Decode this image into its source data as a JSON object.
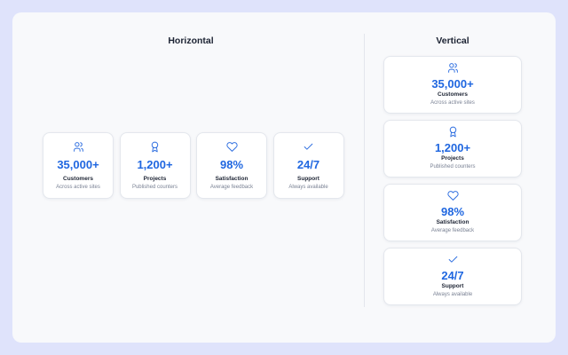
{
  "horizontal": {
    "title": "Horizontal",
    "cards": [
      {
        "value": "35,000+",
        "label": "Customers",
        "sub": "Across active sites"
      },
      {
        "value": "1,200+",
        "label": "Projects",
        "sub": "Published counters"
      },
      {
        "value": "98%",
        "label": "Satisfaction",
        "sub": "Average feedback"
      },
      {
        "value": "24/7",
        "label": "Support",
        "sub": "Always available"
      }
    ]
  },
  "vertical": {
    "title": "Vertical",
    "cards": [
      {
        "value": "35,000+",
        "label": "Customers",
        "sub": "Across active sites"
      },
      {
        "value": "1,200+",
        "label": "Projects",
        "sub": "Published counters"
      },
      {
        "value": "98%",
        "label": "Satisfaction",
        "sub": "Average feedback"
      },
      {
        "value": "24/7",
        "label": "Support",
        "sub": "Always available"
      }
    ]
  }
}
